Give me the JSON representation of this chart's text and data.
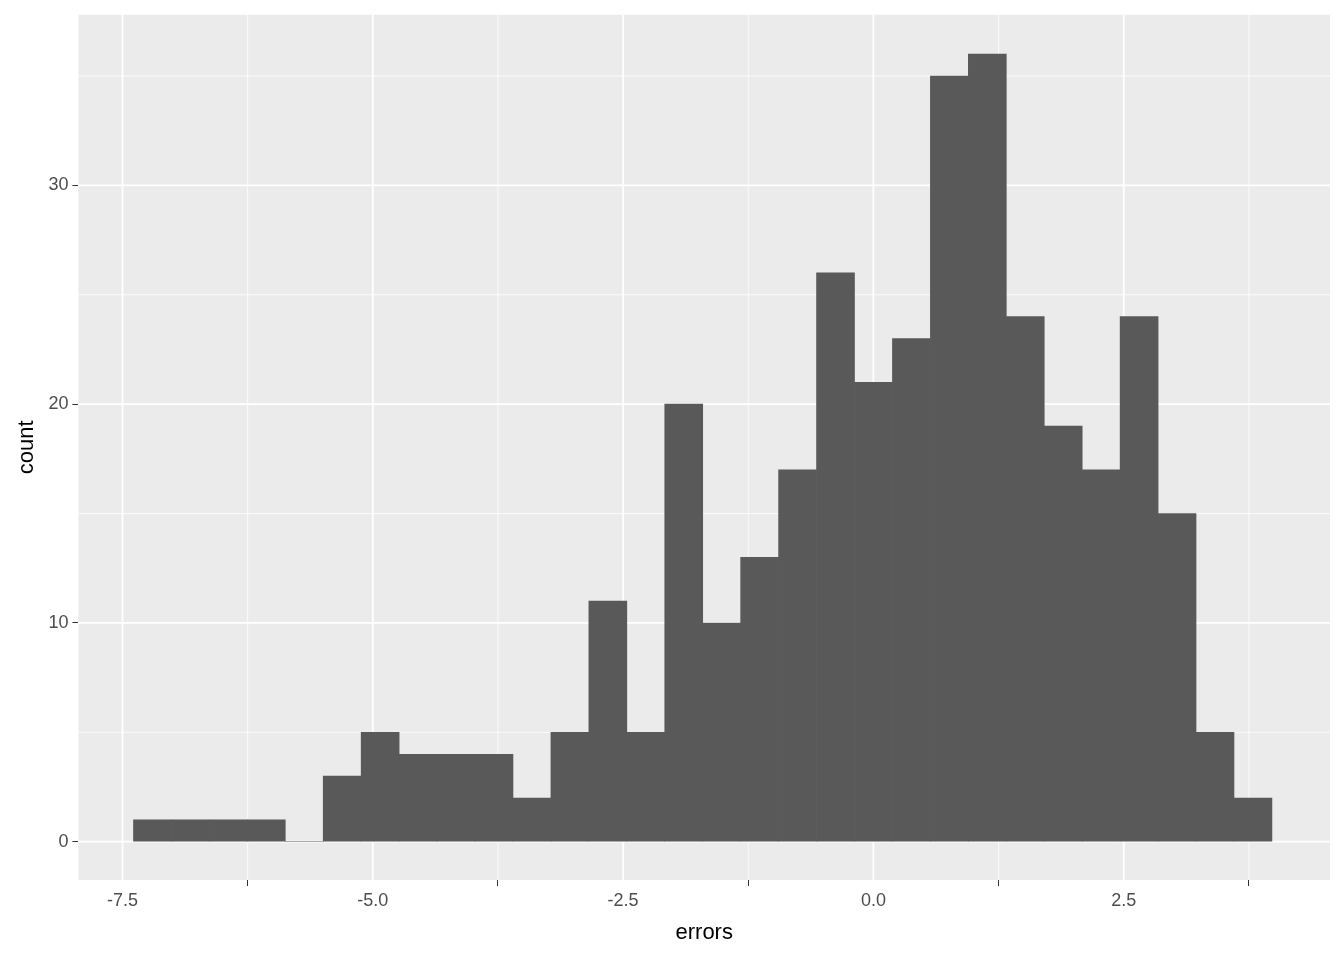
{
  "chart_data": {
    "type": "histogram",
    "xlabel": "errors",
    "ylabel": "count",
    "color": "#595959",
    "bins": [
      -7.39,
      -7.011,
      -6.632,
      -6.253,
      -5.874,
      -5.495,
      -5.116,
      -4.737,
      -4.358,
      -3.979,
      -3.6,
      -3.221,
      -2.842,
      -2.463,
      -2.084,
      -1.705,
      -1.326,
      -0.947,
      -0.568,
      -0.189,
      0.19,
      0.569,
      0.948,
      1.327,
      1.706,
      2.085,
      2.464,
      2.843,
      3.222,
      3.601,
      3.98
    ],
    "values": [
      1,
      1,
      1,
      1,
      0,
      3,
      5,
      4,
      4,
      4,
      2,
      5,
      11,
      5,
      20,
      10,
      13,
      17,
      26,
      21,
      23,
      35,
      36,
      24,
      19,
      17,
      24,
      15,
      5,
      2
    ],
    "xlim": [
      -7.94,
      4.56
    ],
    "ylim": [
      -1.75,
      37.8
    ],
    "xticks": [
      {
        "value": -7.5,
        "label": "-7.5"
      },
      {
        "value": -5,
        "label": "-5.0"
      },
      {
        "value": -2.5,
        "label": "-2.5"
      },
      {
        "value": 0,
        "label": "0.0"
      },
      {
        "value": 2.5,
        "label": "2.5"
      }
    ],
    "yticks": [
      0,
      10,
      20,
      30
    ],
    "grid": true,
    "legend": false
  }
}
